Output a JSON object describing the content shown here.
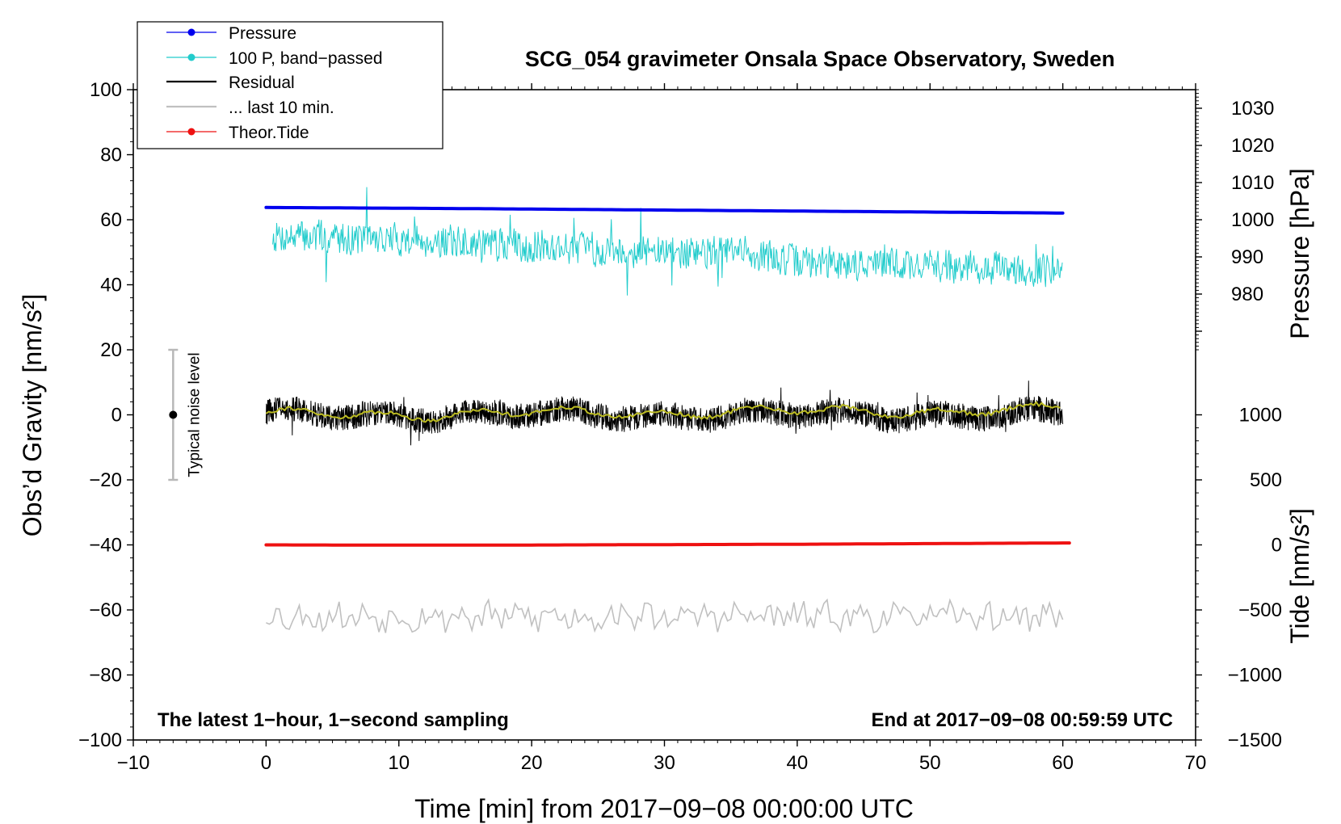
{
  "chart_data": {
    "type": "line",
    "title": "SCG_054 gravimeter Onsala Space Observatory, Sweden",
    "xlabel": "Time [min] from 2017−09−08 00:00:00 UTC",
    "ylabel": "Obs’d Gravity [nm/s²]",
    "xlim": [
      -10,
      70
    ],
    "ylim": [
      -100,
      100
    ],
    "x_ticks": [
      -10,
      0,
      10,
      20,
      30,
      40,
      50,
      60,
      70
    ],
    "x_tick_labels": [
      "−10",
      "0",
      "10",
      "20",
      "30",
      "40",
      "50",
      "60",
      "70"
    ],
    "y_ticks": [
      -100,
      -80,
      -60,
      -40,
      -20,
      0,
      20,
      40,
      60,
      80,
      100
    ],
    "y_tick_labels": [
      "−100",
      "−80",
      "−60",
      "−40",
      "−20",
      "0",
      "20",
      "40",
      "60",
      "80",
      "100"
    ],
    "pressure_axis": {
      "label": "Pressure [hPa]",
      "gravity_range": [
        20,
        100
      ],
      "pressure_range": [
        965,
        1035
      ],
      "ticks": [
        980,
        990,
        1000,
        1010,
        1020,
        1030
      ],
      "tick_labels": [
        "980",
        "990",
        "1000",
        "1010",
        "1020",
        "1030"
      ]
    },
    "tide_axis": {
      "label": "Tide [nm/s²]",
      "gravity_range": [
        -100,
        20
      ],
      "tide_range": [
        -1500,
        1500
      ],
      "ticks": [
        -1500,
        -1000,
        -500,
        0,
        500,
        1000
      ],
      "tick_labels": [
        "−1500",
        "−1000",
        "−500",
        "0",
        "500",
        "1000"
      ]
    },
    "series": [
      {
        "name": "Pressure",
        "key": "pressure",
        "color": "#0000ee",
        "units": "hPa",
        "x": [
          0,
          15,
          30,
          45,
          60
        ],
        "values": [
          1003.3,
          1003.0,
          1002.6,
          1002.2,
          1001.8
        ]
      },
      {
        "name": "100 P, band−passed",
        "key": "bandpassed",
        "color": "#22cccc",
        "units": "nm/s²",
        "x": [
          0.5,
          10,
          20,
          30,
          36,
          40,
          50,
          60
        ],
        "values": [
          55,
          54,
          52,
          50,
          50,
          47,
          46,
          44
        ],
        "noise_amplitude": 5
      },
      {
        "name": "Residual",
        "key": "residual",
        "color": "#000000",
        "units": "nm/s²",
        "x": [
          0,
          60
        ],
        "values": [
          0,
          0
        ],
        "noise_amplitude": 4
      },
      {
        "name": "... last 10 min.",
        "key": "last10",
        "color": "#c0c0c0",
        "units": "nm/s²",
        "x": [
          0,
          60
        ],
        "values": [
          -62,
          -62
        ],
        "noise_amplitude": 4
      },
      {
        "name": "Theor.Tide",
        "key": "tide",
        "color": "#ee1111",
        "units": "nm/s²",
        "x": [
          0,
          10,
          20,
          30,
          40,
          50,
          60.5
        ],
        "values": [
          0,
          -2,
          -1,
          2,
          5,
          10,
          15
        ]
      },
      {
        "name": "Residual, smoothed",
        "key": "smoothed",
        "color": "#bbbb22",
        "units": "nm/s²",
        "x": [
          0,
          60
        ],
        "values": [
          0,
          1.5
        ],
        "legend": false
      }
    ],
    "noise_bar": {
      "label": "Typical noise level",
      "x": -7,
      "center": 0,
      "low": -20,
      "high": 20
    },
    "bottom_left_note": "The latest 1−hour, 1−second sampling",
    "bottom_right_note": "End at 2017−09−08 00:59:59 UTC"
  }
}
